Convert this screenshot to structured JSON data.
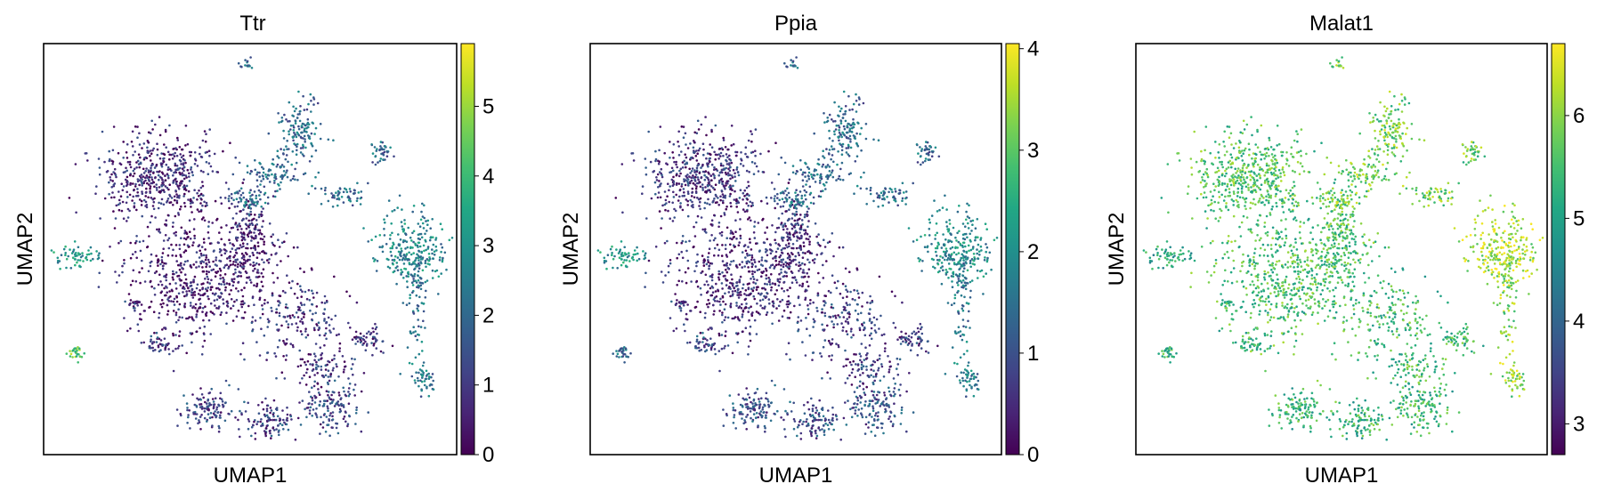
{
  "chart_data": [
    {
      "type": "scatter",
      "title": "Ttr",
      "xlabel": "UMAP1",
      "ylabel": "UMAP2",
      "colormap": "viridis",
      "colorbar": {
        "range": [
          0,
          5.9
        ],
        "ticks": [
          "0",
          "1",
          "2",
          "3",
          "4",
          "5"
        ]
      },
      "grid": false,
      "clusters": [
        {
          "name": "large-upper-left",
          "level": 0.12
        },
        {
          "name": "large-center",
          "level": 0.08
        },
        {
          "name": "right-tall",
          "level": 0.45
        },
        {
          "name": "right-stem",
          "level": 0.38
        },
        {
          "name": "upper-branch",
          "level": 0.35
        },
        {
          "name": "left-small",
          "level": 0.5
        },
        {
          "name": "left-bottom-small",
          "level": 0.75
        },
        {
          "name": "bottom-clusters",
          "level": 0.2
        },
        {
          "name": "scattered-middle",
          "level": 0.15
        }
      ]
    },
    {
      "type": "scatter",
      "title": "Ppia",
      "xlabel": "UMAP1",
      "ylabel": "UMAP2",
      "colormap": "viridis",
      "colorbar": {
        "range": [
          0,
          4.05
        ],
        "ticks": [
          "0",
          "1",
          "2",
          "3",
          "4"
        ]
      },
      "grid": false,
      "clusters": [
        {
          "name": "large-upper-left",
          "level": 0.15
        },
        {
          "name": "large-center",
          "level": 0.12
        },
        {
          "name": "right-tall",
          "level": 0.48
        },
        {
          "name": "right-stem",
          "level": 0.4
        },
        {
          "name": "upper-branch",
          "level": 0.35
        },
        {
          "name": "left-small",
          "level": 0.5
        },
        {
          "name": "left-bottom-small",
          "level": 0.35
        },
        {
          "name": "bottom-clusters",
          "level": 0.25
        },
        {
          "name": "scattered-middle",
          "level": 0.18
        }
      ]
    },
    {
      "type": "scatter",
      "title": "Malat1",
      "xlabel": "UMAP1",
      "ylabel": "UMAP2",
      "colormap": "viridis",
      "colorbar": {
        "range": [
          2.7,
          6.7
        ],
        "ticks": [
          "3",
          "4",
          "5",
          "6"
        ]
      },
      "grid": false,
      "clusters": [
        {
          "name": "large-upper-left",
          "level": 0.72
        },
        {
          "name": "large-center",
          "level": 0.7
        },
        {
          "name": "right-tall",
          "level": 0.88
        },
        {
          "name": "right-stem",
          "level": 0.82
        },
        {
          "name": "upper-branch",
          "level": 0.78
        },
        {
          "name": "left-small",
          "level": 0.58
        },
        {
          "name": "left-bottom-small",
          "level": 0.65
        },
        {
          "name": "bottom-clusters",
          "level": 0.66
        },
        {
          "name": "scattered-middle",
          "level": 0.68
        }
      ]
    }
  ]
}
